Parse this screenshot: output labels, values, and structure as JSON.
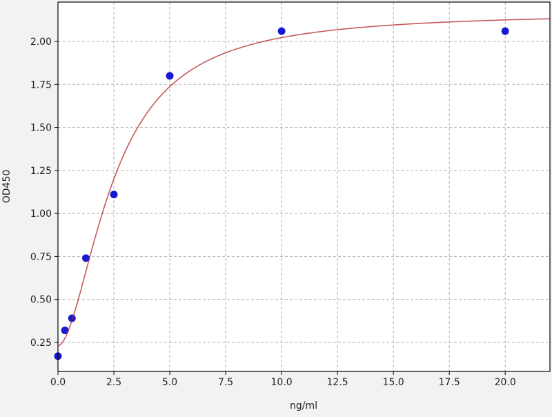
{
  "chart_data": {
    "type": "scatter",
    "title": "",
    "xlabel": "ng/ml",
    "ylabel": "OD450",
    "xlim": [
      0,
      22
    ],
    "ylim": [
      0.081,
      2.229
    ],
    "grid": true,
    "xticks": [
      "0.0",
      "2.5",
      "5.0",
      "7.5",
      "10.0",
      "12.5",
      "15.0",
      "17.5",
      "20.0"
    ],
    "xtick_values": [
      0,
      2.5,
      5,
      7.5,
      10,
      12.5,
      15,
      17.5,
      20
    ],
    "yticks": [
      "0.25",
      "0.50",
      "0.75",
      "1.00",
      "1.25",
      "1.50",
      "1.75",
      "2.00"
    ],
    "ytick_values": [
      0.25,
      0.5,
      0.75,
      1.0,
      1.25,
      1.5,
      1.75,
      2.0
    ],
    "points": {
      "x": [
        0,
        0.3125,
        0.625,
        1.25,
        2.5,
        5,
        10,
        20
      ],
      "y": [
        0.17,
        0.32,
        0.39,
        0.74,
        1.11,
        1.8,
        2.06,
        2.06
      ],
      "color": "#0000cc"
    },
    "fit_curve": {
      "model": "4PL",
      "a": 0.23,
      "b": 1.8,
      "c": 2.5,
      "d": 2.17,
      "color": "#b22222"
    }
  }
}
